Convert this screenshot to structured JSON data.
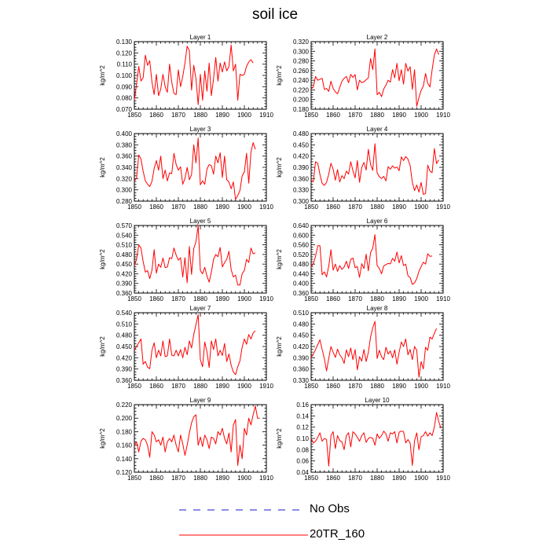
{
  "title": "soil ice",
  "colors": {
    "model": "#ff0000",
    "obs": "#1a1acc",
    "axis": "#000000"
  },
  "legend": [
    {
      "label": "No Obs",
      "style": "dashed",
      "color": "#1a1acc"
    },
    {
      "label": "20TR_160",
      "style": "solid",
      "color": "#ff0000"
    }
  ],
  "chart_data": [
    {
      "type": "line",
      "title": "Layer 1",
      "ylabel": "kg/m^2",
      "xlim": [
        1850,
        1910
      ],
      "ylim": [
        0.07,
        0.13
      ],
      "xticks": [
        "1850",
        "1860",
        "1870",
        "1880",
        "1890",
        "1900",
        "1910"
      ],
      "yticks": [
        "0.070",
        "0.080",
        "0.090",
        "0.100",
        "0.110",
        "0.120",
        "0.130"
      ],
      "series": [
        {
          "name": "20TR_160",
          "x_start": 1850,
          "x_step": 1,
          "values": [
            0.078,
            0.092,
            0.108,
            0.095,
            0.098,
            0.118,
            0.109,
            0.113,
            0.094,
            0.083,
            0.101,
            0.082,
            0.088,
            0.101,
            0.09,
            0.085,
            0.11,
            0.094,
            0.084,
            0.083,
            0.105,
            0.09,
            0.099,
            0.111,
            0.126,
            0.122,
            0.087,
            0.109,
            0.097,
            0.074,
            0.101,
            0.078,
            0.104,
            0.086,
            0.111,
            0.082,
            0.097,
            0.116,
            0.095,
            0.111,
            0.103,
            0.112,
            0.104,
            0.108,
            0.127,
            0.104,
            0.11,
            0.078,
            0.101,
            0.1,
            0.101,
            0.108,
            0.112,
            0.114,
            0.111
          ]
        }
      ]
    },
    {
      "type": "line",
      "title": "Layer 2",
      "ylabel": "kg/m^2",
      "xlim": [
        1850,
        1910
      ],
      "ylim": [
        0.18,
        0.32
      ],
      "xticks": [
        "1850",
        "1860",
        "1870",
        "1880",
        "1890",
        "1900",
        "1910"
      ],
      "yticks": [
        "0.180",
        "0.200",
        "0.220",
        "0.240",
        "0.260",
        "0.280",
        "0.300",
        "0.320"
      ],
      "series": [
        {
          "name": "20TR_160",
          "x_start": 1850,
          "x_step": 1,
          "values": [
            0.222,
            0.226,
            0.248,
            0.24,
            0.242,
            0.244,
            0.221,
            0.223,
            0.217,
            0.238,
            0.223,
            0.216,
            0.212,
            0.225,
            0.238,
            0.244,
            0.248,
            0.235,
            0.252,
            0.246,
            0.252,
            0.22,
            0.24,
            0.235,
            0.237,
            0.241,
            0.245,
            0.285,
            0.262,
            0.305,
            0.21,
            0.215,
            0.206,
            0.222,
            0.23,
            0.24,
            0.236,
            0.262,
            0.245,
            0.275,
            0.239,
            0.262,
            0.232,
            0.275,
            0.259,
            0.268,
            0.221,
            0.262,
            0.186,
            0.204,
            0.219,
            0.228,
            0.254,
            0.234,
            0.226,
            0.262,
            0.292,
            0.305,
            0.293
          ]
        }
      ]
    },
    {
      "type": "line",
      "title": "Layer 3",
      "ylabel": "kg/m^2",
      "xlim": [
        1850,
        1910
      ],
      "ylim": [
        0.28,
        0.4
      ],
      "xticks": [
        "1850",
        "1860",
        "1870",
        "1880",
        "1890",
        "1900",
        "1910"
      ],
      "yticks": [
        "0.280",
        "0.300",
        "0.320",
        "0.340",
        "0.360",
        "0.380",
        "0.400"
      ],
      "series": [
        {
          "name": "20TR_160",
          "x_start": 1850,
          "x_step": 1,
          "values": [
            0.316,
            0.321,
            0.362,
            0.355,
            0.333,
            0.316,
            0.31,
            0.306,
            0.315,
            0.338,
            0.352,
            0.335,
            0.36,
            0.32,
            0.335,
            0.316,
            0.33,
            0.329,
            0.365,
            0.345,
            0.335,
            0.341,
            0.31,
            0.32,
            0.34,
            0.318,
            0.327,
            0.38,
            0.348,
            0.392,
            0.309,
            0.316,
            0.31,
            0.337,
            0.345,
            0.343,
            0.328,
            0.36,
            0.348,
            0.366,
            0.322,
            0.36,
            0.318,
            0.314,
            0.302,
            0.314,
            0.283,
            0.29,
            0.299,
            0.325,
            0.332,
            0.365,
            0.312,
            0.367,
            0.384,
            0.372
          ]
        }
      ]
    },
    {
      "type": "line",
      "title": "Layer 4",
      "ylabel": "kg/m^2",
      "xlim": [
        1850,
        1910
      ],
      "ylim": [
        0.3,
        0.48
      ],
      "xticks": [
        "1850",
        "1860",
        "1870",
        "1880",
        "1890",
        "1900",
        "1910"
      ],
      "yticks": [
        "0.300",
        "0.330",
        "0.360",
        "0.390",
        "0.420",
        "0.450",
        "0.480"
      ],
      "series": [
        {
          "name": "20TR_160",
          "x_start": 1850,
          "x_step": 1,
          "values": [
            0.355,
            0.352,
            0.405,
            0.401,
            0.371,
            0.347,
            0.342,
            0.35,
            0.372,
            0.401,
            0.385,
            0.356,
            0.384,
            0.351,
            0.368,
            0.36,
            0.38,
            0.372,
            0.405,
            0.381,
            0.362,
            0.408,
            0.35,
            0.39,
            0.403,
            0.383,
            0.438,
            0.398,
            0.382,
            0.453,
            0.375,
            0.365,
            0.36,
            0.366,
            0.354,
            0.392,
            0.385,
            0.394,
            0.388,
            0.391,
            0.381,
            0.418,
            0.408,
            0.419,
            0.412,
            0.395,
            0.35,
            0.328,
            0.343,
            0.324,
            0.35,
            0.318,
            0.32,
            0.396,
            0.38,
            0.376,
            0.44,
            0.4,
            0.41
          ]
        }
      ]
    },
    {
      "type": "line",
      "title": "Layer 5",
      "ylabel": "kg/m^2",
      "xlim": [
        1850,
        1910
      ],
      "ylim": [
        0.36,
        0.57
      ],
      "xticks": [
        "1850",
        "1860",
        "1870",
        "1880",
        "1890",
        "1900",
        "1910"
      ],
      "yticks": [
        "0.360",
        "0.390",
        "0.420",
        "0.450",
        "0.480",
        "0.510",
        "0.540",
        "0.570"
      ],
      "series": [
        {
          "name": "20TR_160",
          "x_start": 1850,
          "x_step": 1,
          "values": [
            0.445,
            0.465,
            0.51,
            0.5,
            0.458,
            0.425,
            0.43,
            0.405,
            0.431,
            0.495,
            0.422,
            0.45,
            0.44,
            0.469,
            0.439,
            0.441,
            0.47,
            0.467,
            0.5,
            0.478,
            0.462,
            0.47,
            0.41,
            0.47,
            0.392,
            0.505,
            0.418,
            0.498,
            0.52,
            0.57,
            0.43,
            0.42,
            0.44,
            0.413,
            0.394,
            0.425,
            0.465,
            0.48,
            0.473,
            0.502,
            0.441,
            0.455,
            0.465,
            0.49,
            0.433,
            0.41,
            0.416,
            0.385,
            0.385,
            0.42,
            0.43,
            0.465,
            0.455,
            0.5,
            0.482,
            0.485
          ]
        }
      ]
    },
    {
      "type": "line",
      "title": "Layer 6",
      "ylabel": "kg/m^2",
      "xlim": [
        1850,
        1910
      ],
      "ylim": [
        0.36,
        0.64
      ],
      "xticks": [
        "1850",
        "1860",
        "1870",
        "1880",
        "1890",
        "1900",
        "1910"
      ],
      "yticks": [
        "0.360",
        "0.400",
        "0.440",
        "0.480",
        "0.520",
        "0.560",
        "0.600",
        "0.640"
      ],
      "series": [
        {
          "name": "20TR_160",
          "x_start": 1850,
          "x_step": 1,
          "values": [
            0.468,
            0.482,
            0.512,
            0.556,
            0.556,
            0.436,
            0.448,
            0.427,
            0.472,
            0.54,
            0.455,
            0.48,
            0.45,
            0.474,
            0.458,
            0.468,
            0.492,
            0.462,
            0.5,
            0.505,
            0.465,
            0.47,
            0.425,
            0.482,
            0.462,
            0.521,
            0.452,
            0.528,
            0.546,
            0.602,
            0.474,
            0.462,
            0.44,
            0.473,
            0.478,
            0.483,
            0.481,
            0.504,
            0.492,
            0.53,
            0.485,
            0.515,
            0.474,
            0.48,
            0.432,
            0.424,
            0.396,
            0.402,
            0.42,
            0.45,
            0.47,
            0.488,
            0.48,
            0.523,
            0.512,
            0.514
          ]
        }
      ]
    },
    {
      "type": "line",
      "title": "Layer 7",
      "ylabel": "kg/m^2",
      "xlim": [
        1850,
        1910
      ],
      "ylim": [
        0.36,
        0.54
      ],
      "xticks": [
        "1850",
        "1860",
        "1870",
        "1880",
        "1890",
        "1900",
        "1910"
      ],
      "yticks": [
        "0.360",
        "0.390",
        "0.420",
        "0.450",
        "0.480",
        "0.510",
        "0.540"
      ],
      "series": [
        {
          "name": "20TR_160",
          "x_start": 1850,
          "x_step": 1,
          "values": [
            0.44,
            0.45,
            0.46,
            0.47,
            0.403,
            0.41,
            0.395,
            0.391,
            0.44,
            0.46,
            0.42,
            0.44,
            0.425,
            0.465,
            0.423,
            0.425,
            0.47,
            0.427,
            0.425,
            0.44,
            0.425,
            0.442,
            0.42,
            0.448,
            0.428,
            0.465,
            0.446,
            0.482,
            0.508,
            0.535,
            0.415,
            0.396,
            0.462,
            0.436,
            0.394,
            0.465,
            0.442,
            0.47,
            0.425,
            0.44,
            0.426,
            0.458,
            0.41,
            0.43,
            0.4,
            0.382,
            0.375,
            0.396,
            0.412,
            0.448,
            0.47,
            0.456,
            0.482,
            0.47,
            0.486,
            0.492
          ]
        }
      ]
    },
    {
      "type": "line",
      "title": "Layer 8",
      "ylabel": "kg/m^2",
      "xlim": [
        1850,
        1910
      ],
      "ylim": [
        0.33,
        0.51
      ],
      "xticks": [
        "1850",
        "1860",
        "1870",
        "1880",
        "1890",
        "1900",
        "1910"
      ],
      "yticks": [
        "0.330",
        "0.360",
        "0.390",
        "0.420",
        "0.450",
        "0.480",
        "0.510"
      ],
      "series": [
        {
          "name": "20TR_160",
          "x_start": 1850,
          "x_step": 1,
          "values": [
            0.39,
            0.4,
            0.412,
            0.425,
            0.438,
            0.412,
            0.388,
            0.355,
            0.388,
            0.42,
            0.405,
            0.391,
            0.413,
            0.398,
            0.39,
            0.375,
            0.411,
            0.393,
            0.416,
            0.385,
            0.412,
            0.358,
            0.393,
            0.381,
            0.412,
            0.38,
            0.404,
            0.445,
            0.47,
            0.487,
            0.388,
            0.41,
            0.393,
            0.385,
            0.418,
            0.4,
            0.408,
            0.39,
            0.411,
            0.373,
            0.405,
            0.432,
            0.42,
            0.44,
            0.398,
            0.412,
            0.385,
            0.42,
            0.41,
            0.338,
            0.38,
            0.36,
            0.418,
            0.41,
            0.445,
            0.44,
            0.455,
            0.468
          ]
        }
      ]
    },
    {
      "type": "line",
      "title": "Layer 9",
      "ylabel": "kg/m^2",
      "xlim": [
        1850,
        1910
      ],
      "ylim": [
        0.12,
        0.22
      ],
      "xticks": [
        "1850",
        "1860",
        "1870",
        "1880",
        "1890",
        "1900",
        "1910"
      ],
      "yticks": [
        "0.120",
        "0.140",
        "0.160",
        "0.180",
        "0.200",
        "0.220"
      ],
      "series": [
        {
          "name": "20TR_160",
          "x_start": 1850,
          "x_step": 1,
          "values": [
            0.16,
            0.165,
            0.15,
            0.166,
            0.17,
            0.168,
            0.16,
            0.142,
            0.18,
            0.175,
            0.165,
            0.168,
            0.16,
            0.172,
            0.15,
            0.165,
            0.17,
            0.165,
            0.175,
            0.16,
            0.15,
            0.175,
            0.162,
            0.145,
            0.16,
            0.178,
            0.193,
            0.202,
            0.205,
            0.16,
            0.172,
            0.158,
            0.175,
            0.168,
            0.155,
            0.172,
            0.17,
            0.162,
            0.18,
            0.175,
            0.185,
            0.17,
            0.162,
            0.178,
            0.15,
            0.19,
            0.198,
            0.13,
            0.16,
            0.14,
            0.185,
            0.175,
            0.2,
            0.19,
            0.205,
            0.218,
            0.2,
            0.2
          ]
        }
      ]
    },
    {
      "type": "line",
      "title": "Layer 10",
      "ylabel": "kg/m^2",
      "xlim": [
        1850,
        1910
      ],
      "ylim": [
        0.04,
        0.16
      ],
      "xticks": [
        "1850",
        "1860",
        "1870",
        "1880",
        "1890",
        "1900",
        "1910"
      ],
      "yticks": [
        "0.04",
        "0.06",
        "0.08",
        "0.10",
        "0.12",
        "0.14",
        "0.16"
      ],
      "series": [
        {
          "name": "20TR_160",
          "x_start": 1850,
          "x_step": 1,
          "values": [
            0.1,
            0.092,
            0.095,
            0.102,
            0.11,
            0.095,
            0.1,
            0.098,
            0.051,
            0.105,
            0.112,
            0.082,
            0.105,
            0.096,
            0.094,
            0.08,
            0.105,
            0.11,
            0.085,
            0.112,
            0.108,
            0.102,
            0.095,
            0.105,
            0.11,
            0.093,
            0.1,
            0.102,
            0.1,
            0.088,
            0.108,
            0.1,
            0.105,
            0.113,
            0.108,
            0.095,
            0.11,
            0.108,
            0.112,
            0.092,
            0.111,
            0.113,
            0.112,
            0.092,
            0.098,
            0.092,
            0.052,
            0.096,
            0.11,
            0.08,
            0.103,
            0.105,
            0.112,
            0.104,
            0.11,
            0.105,
            0.12,
            0.146,
            0.13,
            0.118
          ]
        }
      ]
    }
  ]
}
